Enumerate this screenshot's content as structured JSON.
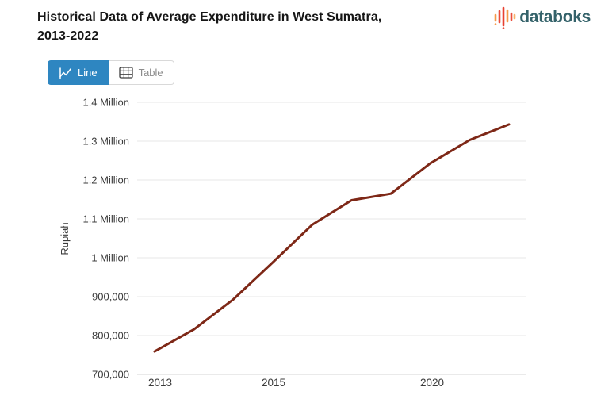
{
  "header": {
    "title_line1": "Historical Data of Average Expenditure in West Sumatra,",
    "title_line2": "2013-2022",
    "logo_text": "databoks"
  },
  "toolbar": {
    "line_button_label": "Line",
    "table_button_label": "Table"
  },
  "chart_data": {
    "type": "line",
    "title": "Historical Data of Average Expenditure in West Sumatra, 2013-2022",
    "xlabel": "",
    "ylabel": "Rupiah",
    "x": [
      2013,
      2014,
      2015,
      2016,
      2017,
      2018,
      2019,
      2020,
      2021,
      2022
    ],
    "values": [
      759000,
      816000,
      893000,
      988000,
      1085000,
      1148000,
      1165000,
      1243000,
      1303000,
      1343000
    ],
    "unit": "Rupiah",
    "line_color": "#7e2817",
    "ylim": [
      700000,
      1400000
    ],
    "grid": true,
    "legend": false,
    "y_ticks": [
      {
        "value": 1400000,
        "label": "1.4 Million"
      },
      {
        "value": 1300000,
        "label": "1.3 Million"
      },
      {
        "value": 1200000,
        "label": "1.2 Million"
      },
      {
        "value": 1100000,
        "label": "1.1 Million"
      },
      {
        "value": 1000000,
        "label": "1 Million"
      },
      {
        "value": 900000,
        "label": "900,000"
      },
      {
        "value": 800000,
        "label": "800,000"
      },
      {
        "value": 700000,
        "label": "700,000"
      }
    ],
    "x_ticks": [
      {
        "label": "2013",
        "x": 202
      },
      {
        "label": "2015",
        "x": 345
      },
      {
        "label": "2020",
        "x": 545
      }
    ]
  },
  "colors": {
    "accent_blue": "#2e86c1",
    "series_line": "#7e2817",
    "logo_teal": "#34626a",
    "logo_orange": "#f59a4a",
    "logo_red": "#ea4d3b",
    "grid_line": "#e7e7e7",
    "axis_line": "#d6d6d6",
    "axis_text": "#3b3b3b"
  }
}
